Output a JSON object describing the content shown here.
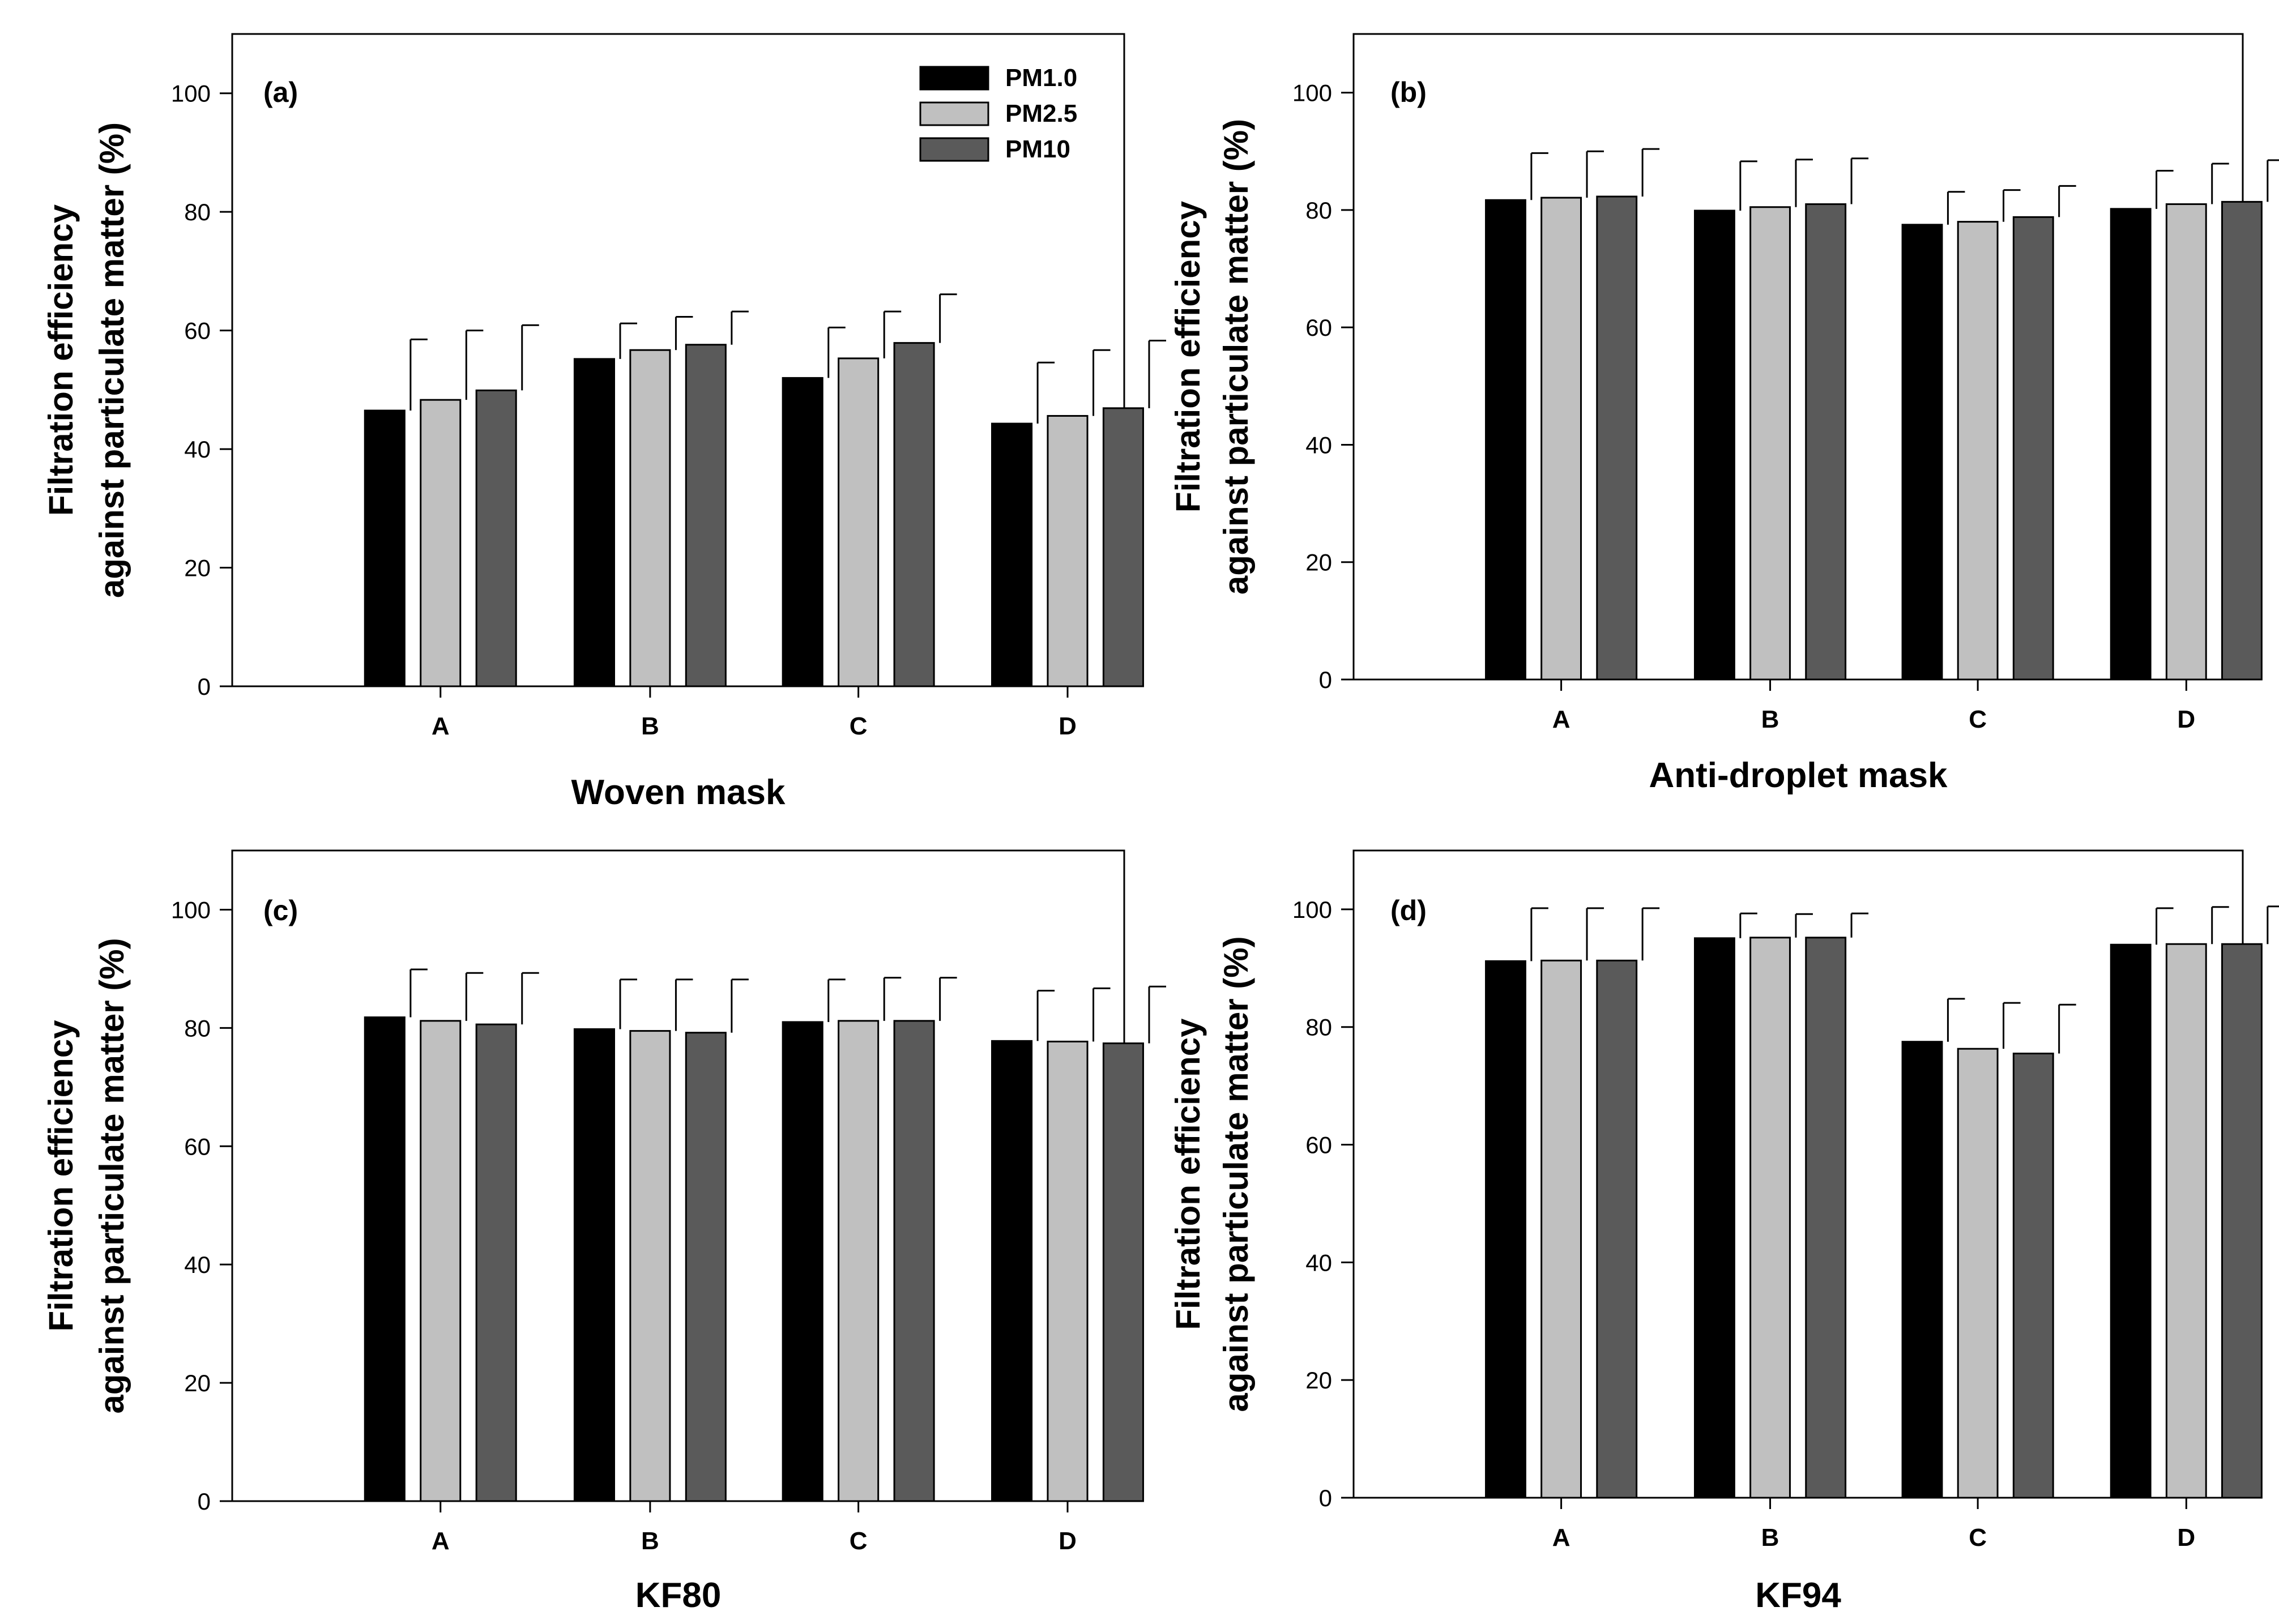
{
  "figure": {
    "legend": [
      {
        "name": "PM1.0",
        "color": "#000000"
      },
      {
        "name": "PM2.5",
        "color": "#c0c0c0"
      },
      {
        "name": "PM10",
        "color": "#5a5a5a"
      }
    ]
  },
  "chart_data": [
    {
      "type": "bar",
      "panel": "(a)",
      "xlabel": "Woven mask",
      "ylabel": [
        "Filtration efficiency",
        "against particulate matter (%)"
      ],
      "ylim": [
        0,
        110
      ],
      "yticks": [
        0,
        20,
        40,
        60,
        80,
        100
      ],
      "categories": [
        "A",
        "B",
        "C",
        "D"
      ],
      "legend_position": "top-right",
      "series": [
        {
          "name": "PM1.0",
          "color": "#000000",
          "values": [
            46.5,
            55.2,
            52.0,
            44.3
          ],
          "errors": [
            12.0,
            6.0,
            8.5,
            10.3
          ]
        },
        {
          "name": "PM2.5",
          "color": "#c0c0c0",
          "values": [
            48.3,
            56.7,
            55.3,
            45.6
          ],
          "errors": [
            11.7,
            5.6,
            7.9,
            11.1
          ]
        },
        {
          "name": "PM10",
          "color": "#5a5a5a",
          "values": [
            49.9,
            57.6,
            57.9,
            46.9
          ],
          "errors": [
            11.0,
            5.6,
            8.2,
            11.4
          ]
        }
      ]
    },
    {
      "type": "bar",
      "panel": "(b)",
      "xlabel": "Anti-droplet mask",
      "ylabel": [
        "Filtration efficiency",
        "against particulate matter (%)"
      ],
      "ylim": [
        0,
        110
      ],
      "yticks": [
        0,
        20,
        40,
        60,
        80,
        100
      ],
      "categories": [
        "A",
        "B",
        "C",
        "D"
      ],
      "series": [
        {
          "name": "PM1.0",
          "color": "#000000",
          "values": [
            81.7,
            79.9,
            77.5,
            80.2
          ],
          "errors": [
            8.0,
            8.4,
            5.6,
            6.5
          ]
        },
        {
          "name": "PM2.5",
          "color": "#c0c0c0",
          "values": [
            82.1,
            80.5,
            78.0,
            81.0
          ],
          "errors": [
            7.9,
            8.1,
            5.4,
            6.9
          ]
        },
        {
          "name": "PM10",
          "color": "#5a5a5a",
          "values": [
            82.3,
            81.0,
            78.8,
            81.4
          ],
          "errors": [
            8.1,
            7.8,
            5.3,
            7.1
          ]
        }
      ]
    },
    {
      "type": "bar",
      "panel": "(c)",
      "xlabel": "KF80",
      "ylabel": [
        "Filtration efficiency",
        "against particulate matter (%)"
      ],
      "ylim": [
        0,
        110
      ],
      "yticks": [
        0,
        20,
        40,
        60,
        80,
        100
      ],
      "categories": [
        "A",
        "B",
        "C",
        "D"
      ],
      "series": [
        {
          "name": "PM1.0",
          "color": "#000000",
          "values": [
            81.8,
            79.8,
            81.0,
            77.8
          ],
          "errors": [
            8.1,
            8.4,
            7.2,
            8.5
          ]
        },
        {
          "name": "PM2.5",
          "color": "#c0c0c0",
          "values": [
            81.2,
            79.5,
            81.2,
            77.7
          ],
          "errors": [
            8.1,
            8.7,
            7.3,
            9.0
          ]
        },
        {
          "name": "PM10",
          "color": "#5a5a5a",
          "values": [
            80.6,
            79.2,
            81.2,
            77.4
          ],
          "errors": [
            8.7,
            9.0,
            7.3,
            9.6
          ]
        }
      ]
    },
    {
      "type": "bar",
      "panel": "(d)",
      "xlabel": "KF94",
      "ylabel": [
        "Filtration efficiency",
        "against particulate matter (%)"
      ],
      "ylim": [
        0,
        110
      ],
      "yticks": [
        0,
        20,
        40,
        60,
        80,
        100
      ],
      "categories": [
        "A",
        "B",
        "C",
        "D"
      ],
      "series": [
        {
          "name": "PM1.0",
          "color": "#000000",
          "values": [
            91.2,
            95.1,
            77.5,
            94.0
          ],
          "errors": [
            9.0,
            4.2,
            7.3,
            6.2
          ]
        },
        {
          "name": "PM2.5",
          "color": "#c0c0c0",
          "values": [
            91.3,
            95.2,
            76.3,
            94.1
          ],
          "errors": [
            8.9,
            4.0,
            7.8,
            6.3
          ]
        },
        {
          "name": "PM10",
          "color": "#5a5a5a",
          "values": [
            91.3,
            95.2,
            75.5,
            94.1
          ],
          "errors": [
            8.9,
            4.1,
            8.3,
            6.4
          ]
        }
      ]
    }
  ]
}
